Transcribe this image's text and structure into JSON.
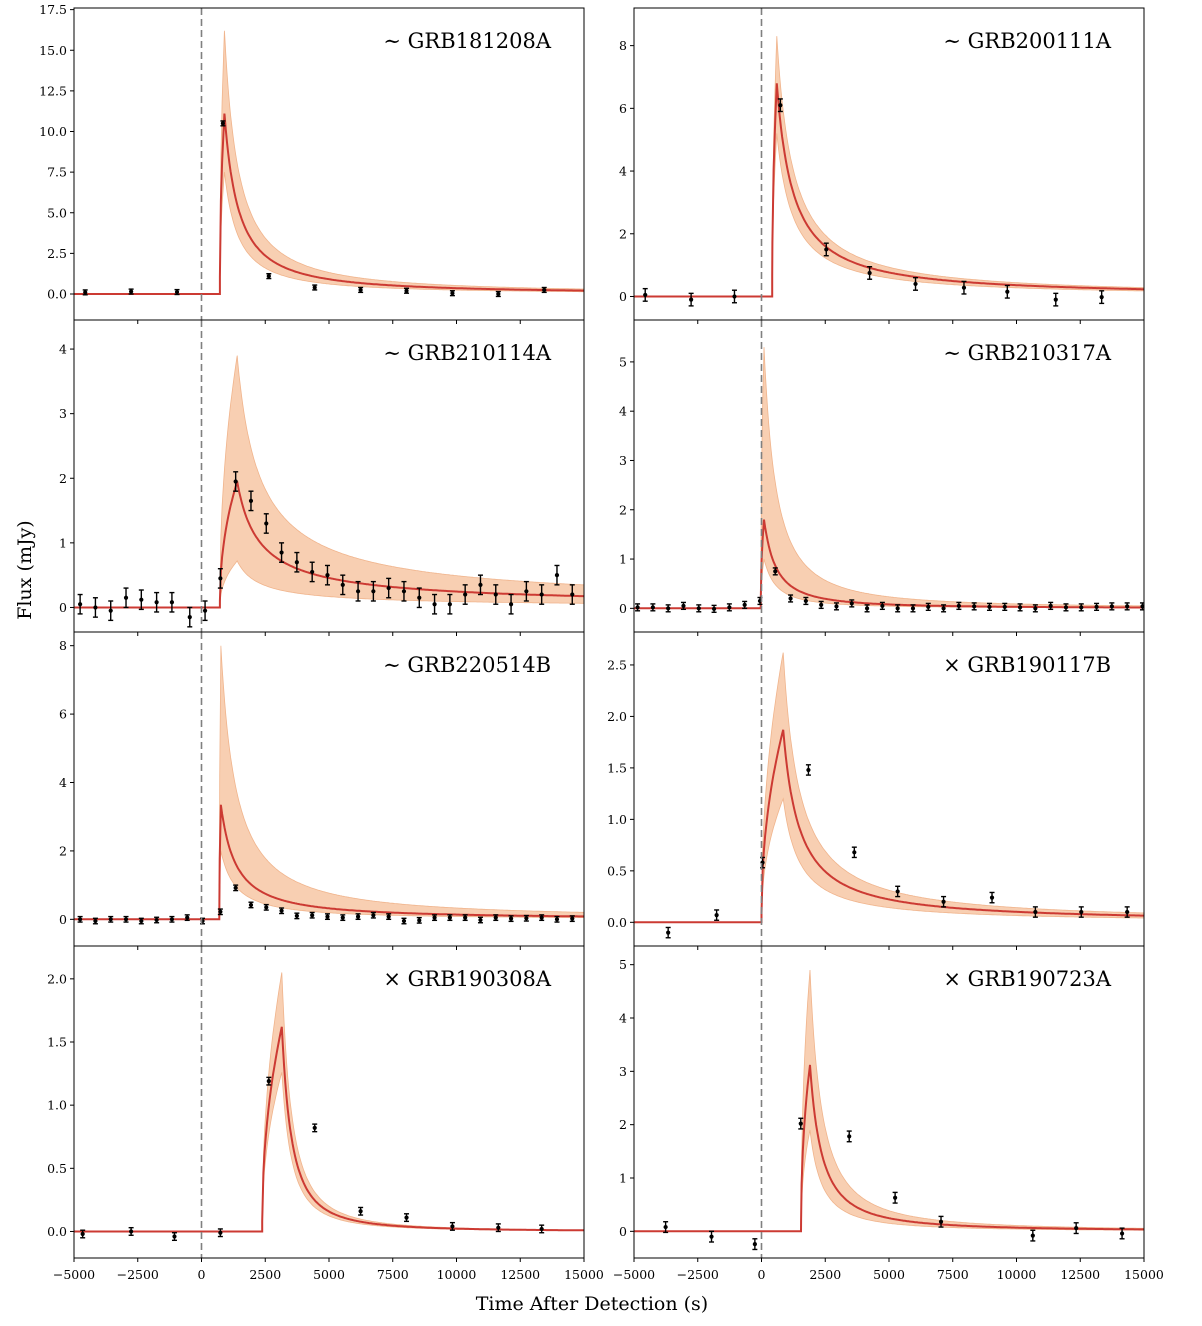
{
  "figure": {
    "ylabel": "Flux (mJy)",
    "xlabel": "Time After Detection (s)",
    "xlim": [
      -5000,
      15000
    ],
    "xticks": [
      -5000,
      -2500,
      0,
      2500,
      5000,
      7500,
      10000,
      12500,
      15000
    ],
    "xtick_labels": [
      "−5000",
      "−2500",
      "0",
      "2500",
      "5000",
      "7500",
      "10000",
      "12500",
      "15000"
    ],
    "colors": {
      "model_line": "#cc3a33",
      "band_fill": "#f8cfb2",
      "band_edge": "#f0b48c",
      "points": "#000000",
      "detection_line": "#808080"
    }
  },
  "chart_data": [
    {
      "type": "line",
      "name": "GRB181208A",
      "label": "∼ GRB181208A",
      "marker": "∼",
      "ylim": [
        -1.6,
        17.6
      ],
      "yticks": [
        0,
        2.5,
        5,
        7.5,
        10,
        12.5,
        15,
        17.5
      ],
      "ytick_labels": [
        "0.0",
        "2.5",
        "5.0",
        "7.5",
        "10.0",
        "12.5",
        "15.0",
        "17.5"
      ],
      "model": {
        "t0": 720,
        "tp": 900,
        "peak": 11.1,
        "band_peak": 16.2,
        "band_low_peak": 7.5,
        "decay": 1.3
      },
      "points": [
        {
          "t": -4560,
          "y": 0.1,
          "err": 0.15
        },
        {
          "t": -2760,
          "y": 0.15,
          "err": 0.15
        },
        {
          "t": -960,
          "y": 0.12,
          "err": 0.15
        },
        {
          "t": 840,
          "y": 10.5,
          "err": 0.15
        },
        {
          "t": 2640,
          "y": 1.1,
          "err": 0.15
        },
        {
          "t": 4440,
          "y": 0.4,
          "err": 0.15
        },
        {
          "t": 6240,
          "y": 0.25,
          "err": 0.15
        },
        {
          "t": 8040,
          "y": 0.2,
          "err": 0.15
        },
        {
          "t": 9840,
          "y": 0.05,
          "err": 0.15
        },
        {
          "t": 11640,
          "y": 0.0,
          "err": 0.15
        },
        {
          "t": 13440,
          "y": 0.25,
          "err": 0.15
        }
      ]
    },
    {
      "type": "line",
      "name": "GRB200111A",
      "label": "∼ GRB200111A",
      "marker": "∼",
      "ylim": [
        -0.75,
        9.2
      ],
      "yticks": [
        0,
        2,
        4,
        6,
        8
      ],
      "ytick_labels": [
        "0",
        "2",
        "4",
        "6",
        "8"
      ],
      "model": {
        "t0": 420,
        "tp": 600,
        "peak": 6.8,
        "band_peak": 8.3,
        "band_low_peak": 5.2,
        "decay": 1.1
      },
      "points": [
        {
          "t": -4560,
          "y": 0.05,
          "err": 0.2
        },
        {
          "t": -2760,
          "y": -0.1,
          "err": 0.2
        },
        {
          "t": -1060,
          "y": 0.0,
          "err": 0.2
        },
        {
          "t": 740,
          "y": 6.1,
          "err": 0.2
        },
        {
          "t": 2540,
          "y": 1.5,
          "err": 0.2
        },
        {
          "t": 4240,
          "y": 0.75,
          "err": 0.2
        },
        {
          "t": 6040,
          "y": 0.4,
          "err": 0.2
        },
        {
          "t": 7940,
          "y": 0.28,
          "err": 0.2
        },
        {
          "t": 9640,
          "y": 0.15,
          "err": 0.2
        },
        {
          "t": 11540,
          "y": -0.1,
          "err": 0.2
        },
        {
          "t": 13340,
          "y": -0.02,
          "err": 0.2
        }
      ]
    },
    {
      "type": "line",
      "name": "GRB210114A",
      "label": "∼ GRB210114A",
      "marker": "∼",
      "ylim": [
        -0.38,
        4.45
      ],
      "yticks": [
        0,
        1,
        2,
        3,
        4
      ],
      "ytick_labels": [
        "0",
        "1",
        "2",
        "3",
        "4"
      ],
      "model": {
        "t0": 720,
        "tp": 1400,
        "peak": 1.95,
        "band_peak": 3.9,
        "band_low_peak": 0.72,
        "decay": 0.8
      },
      "points": [
        {
          "t": -4760,
          "y": 0.05,
          "err": 0.15
        },
        {
          "t": -4160,
          "y": 0.0,
          "err": 0.15
        },
        {
          "t": -3560,
          "y": -0.05,
          "err": 0.15
        },
        {
          "t": -2960,
          "y": 0.15,
          "err": 0.15
        },
        {
          "t": -2360,
          "y": 0.12,
          "err": 0.15
        },
        {
          "t": -1760,
          "y": 0.08,
          "err": 0.15
        },
        {
          "t": -1160,
          "y": 0.08,
          "err": 0.15
        },
        {
          "t": -460,
          "y": -0.15,
          "err": 0.15
        },
        {
          "t": 140,
          "y": -0.05,
          "err": 0.15
        },
        {
          "t": 740,
          "y": 0.45,
          "err": 0.15
        },
        {
          "t": 1340,
          "y": 1.95,
          "err": 0.15
        },
        {
          "t": 1940,
          "y": 1.65,
          "err": 0.15
        },
        {
          "t": 2540,
          "y": 1.3,
          "err": 0.15
        },
        {
          "t": 3140,
          "y": 0.85,
          "err": 0.15
        },
        {
          "t": 3740,
          "y": 0.7,
          "err": 0.15
        },
        {
          "t": 4340,
          "y": 0.55,
          "err": 0.15
        },
        {
          "t": 4940,
          "y": 0.5,
          "err": 0.15
        },
        {
          "t": 5540,
          "y": 0.35,
          "err": 0.15
        },
        {
          "t": 6140,
          "y": 0.25,
          "err": 0.15
        },
        {
          "t": 6740,
          "y": 0.25,
          "err": 0.15
        },
        {
          "t": 7340,
          "y": 0.3,
          "err": 0.15
        },
        {
          "t": 7940,
          "y": 0.25,
          "err": 0.15
        },
        {
          "t": 8540,
          "y": 0.15,
          "err": 0.15
        },
        {
          "t": 9140,
          "y": 0.05,
          "err": 0.15
        },
        {
          "t": 9740,
          "y": 0.05,
          "err": 0.15
        },
        {
          "t": 10340,
          "y": 0.2,
          "err": 0.15
        },
        {
          "t": 10940,
          "y": 0.35,
          "err": 0.15
        },
        {
          "t": 11540,
          "y": 0.2,
          "err": 0.15
        },
        {
          "t": 12140,
          "y": 0.05,
          "err": 0.15
        },
        {
          "t": 12740,
          "y": 0.25,
          "err": 0.15
        },
        {
          "t": 13340,
          "y": 0.2,
          "err": 0.15
        },
        {
          "t": 13940,
          "y": 0.5,
          "err": 0.15
        },
        {
          "t": 14540,
          "y": 0.2,
          "err": 0.15
        }
      ]
    },
    {
      "type": "line",
      "name": "GRB210317A",
      "label": "∼ GRB210317A",
      "marker": "∼",
      "ylim": [
        -0.48,
        5.85
      ],
      "yticks": [
        0,
        1,
        2,
        3,
        4,
        5
      ],
      "ytick_labels": [
        "0",
        "1",
        "2",
        "3",
        "4",
        "5"
      ],
      "model": {
        "t0": -30,
        "tp": 100,
        "peak": 1.8,
        "band_peak": 5.3,
        "band_low_peak": 1.0,
        "decay": 1.5
      },
      "points": [
        {
          "t": -4860,
          "y": 0.02,
          "err": 0.07
        },
        {
          "t": -4260,
          "y": 0.02,
          "err": 0.07
        },
        {
          "t": -3660,
          "y": 0.0,
          "err": 0.07
        },
        {
          "t": -3060,
          "y": 0.05,
          "err": 0.07
        },
        {
          "t": -2460,
          "y": 0.0,
          "err": 0.07
        },
        {
          "t": -1860,
          "y": -0.01,
          "err": 0.07
        },
        {
          "t": -1260,
          "y": 0.02,
          "err": 0.07
        },
        {
          "t": -660,
          "y": 0.07,
          "err": 0.07
        },
        {
          "t": -60,
          "y": 0.15,
          "err": 0.07
        },
        {
          "t": 540,
          "y": 0.75,
          "err": 0.07
        },
        {
          "t": 1140,
          "y": 0.2,
          "err": 0.07
        },
        {
          "t": 1740,
          "y": 0.15,
          "err": 0.07
        },
        {
          "t": 2340,
          "y": 0.07,
          "err": 0.07
        },
        {
          "t": 2940,
          "y": 0.04,
          "err": 0.07
        },
        {
          "t": 3540,
          "y": 0.1,
          "err": 0.07
        },
        {
          "t": 4140,
          "y": 0.0,
          "err": 0.07
        },
        {
          "t": 4740,
          "y": 0.05,
          "err": 0.07
        },
        {
          "t": 5340,
          "y": 0.0,
          "err": 0.07
        },
        {
          "t": 5940,
          "y": 0.0,
          "err": 0.07
        },
        {
          "t": 6540,
          "y": 0.03,
          "err": 0.07
        },
        {
          "t": 7140,
          "y": 0.0,
          "err": 0.07
        },
        {
          "t": 7740,
          "y": 0.05,
          "err": 0.07
        },
        {
          "t": 8340,
          "y": 0.04,
          "err": 0.07
        },
        {
          "t": 8940,
          "y": 0.03,
          "err": 0.07
        },
        {
          "t": 9540,
          "y": 0.03,
          "err": 0.07
        },
        {
          "t": 10140,
          "y": 0.02,
          "err": 0.07
        },
        {
          "t": 10740,
          "y": 0.0,
          "err": 0.07
        },
        {
          "t": 11340,
          "y": 0.05,
          "err": 0.07
        },
        {
          "t": 11940,
          "y": 0.02,
          "err": 0.07
        },
        {
          "t": 12540,
          "y": 0.02,
          "err": 0.07
        },
        {
          "t": 13140,
          "y": 0.03,
          "err": 0.07
        },
        {
          "t": 13740,
          "y": 0.04,
          "err": 0.07
        },
        {
          "t": 14340,
          "y": 0.04,
          "err": 0.07
        },
        {
          "t": 14940,
          "y": 0.04,
          "err": 0.07
        }
      ]
    },
    {
      "type": "line",
      "name": "GRB220514B",
      "label": "∼ GRB220514B",
      "marker": "∼",
      "ylim": [
        -0.78,
        8.4
      ],
      "yticks": [
        0,
        2,
        4,
        6,
        8
      ],
      "ytick_labels": [
        "0",
        "2",
        "4",
        "6",
        "8"
      ],
      "model": {
        "t0": 700,
        "tp": 760,
        "peak": 3.35,
        "band_peak": 8.0,
        "band_low_peak": 2.0,
        "decay": 1.2
      },
      "points": [
        {
          "t": -4760,
          "y": 0.0,
          "err": 0.08
        },
        {
          "t": -4160,
          "y": -0.05,
          "err": 0.08
        },
        {
          "t": -3560,
          "y": 0.0,
          "err": 0.08
        },
        {
          "t": -2960,
          "y": 0.0,
          "err": 0.08
        },
        {
          "t": -2360,
          "y": -0.05,
          "err": 0.08
        },
        {
          "t": -1760,
          "y": -0.02,
          "err": 0.08
        },
        {
          "t": -1160,
          "y": 0.0,
          "err": 0.08
        },
        {
          "t": -560,
          "y": 0.05,
          "err": 0.08
        },
        {
          "t": 40,
          "y": -0.05,
          "err": 0.08
        },
        {
          "t": 740,
          "y": 0.22,
          "err": 0.08
        },
        {
          "t": 1340,
          "y": 0.92,
          "err": 0.08
        },
        {
          "t": 1940,
          "y": 0.42,
          "err": 0.08
        },
        {
          "t": 2540,
          "y": 0.35,
          "err": 0.08
        },
        {
          "t": 3140,
          "y": 0.25,
          "err": 0.08
        },
        {
          "t": 3740,
          "y": 0.1,
          "err": 0.08
        },
        {
          "t": 4340,
          "y": 0.12,
          "err": 0.08
        },
        {
          "t": 4940,
          "y": 0.08,
          "err": 0.08
        },
        {
          "t": 5540,
          "y": 0.05,
          "err": 0.08
        },
        {
          "t": 6140,
          "y": 0.08,
          "err": 0.08
        },
        {
          "t": 6740,
          "y": 0.12,
          "err": 0.08
        },
        {
          "t": 7340,
          "y": 0.08,
          "err": 0.08
        },
        {
          "t": 7940,
          "y": -0.05,
          "err": 0.08
        },
        {
          "t": 8540,
          "y": -0.03,
          "err": 0.08
        },
        {
          "t": 9140,
          "y": 0.05,
          "err": 0.08
        },
        {
          "t": 9740,
          "y": 0.05,
          "err": 0.08
        },
        {
          "t": 10340,
          "y": 0.05,
          "err": 0.08
        },
        {
          "t": 10940,
          "y": -0.02,
          "err": 0.08
        },
        {
          "t": 11540,
          "y": 0.05,
          "err": 0.08
        },
        {
          "t": 12140,
          "y": 0.02,
          "err": 0.08
        },
        {
          "t": 12740,
          "y": 0.03,
          "err": 0.08
        },
        {
          "t": 13340,
          "y": 0.05,
          "err": 0.08
        },
        {
          "t": 13940,
          "y": 0.0,
          "err": 0.08
        },
        {
          "t": 14540,
          "y": 0.02,
          "err": 0.08
        }
      ]
    },
    {
      "type": "line",
      "name": "GRB190117B",
      "label": "× GRB190117B",
      "marker": "×",
      "ylim": [
        -0.23,
        2.82
      ],
      "yticks": [
        0,
        0.5,
        1,
        1.5,
        2,
        2.5
      ],
      "ytick_labels": [
        "0.0",
        "0.5",
        "1.0",
        "1.5",
        "2.0",
        "2.5"
      ],
      "model": {
        "t0": 0,
        "tp": 850,
        "peak": 1.87,
        "band_peak": 2.62,
        "band_low_peak": 1.2,
        "decay": 1.1
      },
      "points": [
        {
          "t": -3660,
          "y": -0.1,
          "err": 0.05
        },
        {
          "t": -1760,
          "y": 0.07,
          "err": 0.05
        },
        {
          "t": 40,
          "y": 0.58,
          "err": 0.05
        },
        {
          "t": 1840,
          "y": 1.48,
          "err": 0.05
        },
        {
          "t": 3640,
          "y": 0.68,
          "err": 0.05
        },
        {
          "t": 5340,
          "y": 0.3,
          "err": 0.05
        },
        {
          "t": 7140,
          "y": 0.2,
          "err": 0.05
        },
        {
          "t": 9040,
          "y": 0.24,
          "err": 0.05
        },
        {
          "t": 10740,
          "y": 0.1,
          "err": 0.05
        },
        {
          "t": 12540,
          "y": 0.1,
          "err": 0.05
        },
        {
          "t": 14340,
          "y": 0.1,
          "err": 0.05
        }
      ]
    },
    {
      "type": "line",
      "name": "GRB190308A",
      "label": "× GRB190308A",
      "marker": "×",
      "ylim": [
        -0.21,
        2.26
      ],
      "yticks": [
        0,
        0.5,
        1,
        1.5,
        2
      ],
      "ytick_labels": [
        "0.0",
        "0.5",
        "1.0",
        "1.5",
        "2.0"
      ],
      "model": {
        "t0": 2380,
        "tp": 3150,
        "peak": 1.62,
        "band_peak": 2.05,
        "band_low_peak": 1.26,
        "decay": 1.8
      },
      "points": [
        {
          "t": -4660,
          "y": -0.02,
          "err": 0.03
        },
        {
          "t": -2760,
          "y": 0.0,
          "err": 0.03
        },
        {
          "t": -1060,
          "y": -0.04,
          "err": 0.03
        },
        {
          "t": 740,
          "y": -0.01,
          "err": 0.03
        },
        {
          "t": 2640,
          "y": 1.19,
          "err": 0.03
        },
        {
          "t": 4440,
          "y": 0.82,
          "err": 0.03
        },
        {
          "t": 6240,
          "y": 0.16,
          "err": 0.03
        },
        {
          "t": 8040,
          "y": 0.11,
          "err": 0.03
        },
        {
          "t": 9840,
          "y": 0.04,
          "err": 0.03
        },
        {
          "t": 11640,
          "y": 0.03,
          "err": 0.03
        },
        {
          "t": 13340,
          "y": 0.02,
          "err": 0.03
        }
      ]
    },
    {
      "type": "line",
      "name": "GRB190723A",
      "label": "× GRB190723A",
      "marker": "×",
      "ylim": [
        -0.5,
        5.35
      ],
      "yticks": [
        0,
        1,
        2,
        3,
        4,
        5
      ],
      "ytick_labels": [
        "0",
        "1",
        "2",
        "3",
        "4",
        "5"
      ],
      "model": {
        "t0": 1550,
        "tp": 1900,
        "peak": 3.12,
        "band_peak": 4.9,
        "band_low_peak": 1.9,
        "decay": 1.5
      },
      "points": [
        {
          "t": -3760,
          "y": 0.08,
          "err": 0.1
        },
        {
          "t": -1960,
          "y": -0.1,
          "err": 0.1
        },
        {
          "t": -260,
          "y": -0.24,
          "err": 0.1
        },
        {
          "t": 1540,
          "y": 2.02,
          "err": 0.1
        },
        {
          "t": 3440,
          "y": 1.78,
          "err": 0.1
        },
        {
          "t": 5240,
          "y": 0.63,
          "err": 0.1
        },
        {
          "t": 7040,
          "y": 0.18,
          "err": 0.1
        },
        {
          "t": 10640,
          "y": -0.08,
          "err": 0.1
        },
        {
          "t": 12340,
          "y": 0.06,
          "err": 0.1
        },
        {
          "t": 14140,
          "y": -0.04,
          "err": 0.1
        }
      ]
    }
  ]
}
